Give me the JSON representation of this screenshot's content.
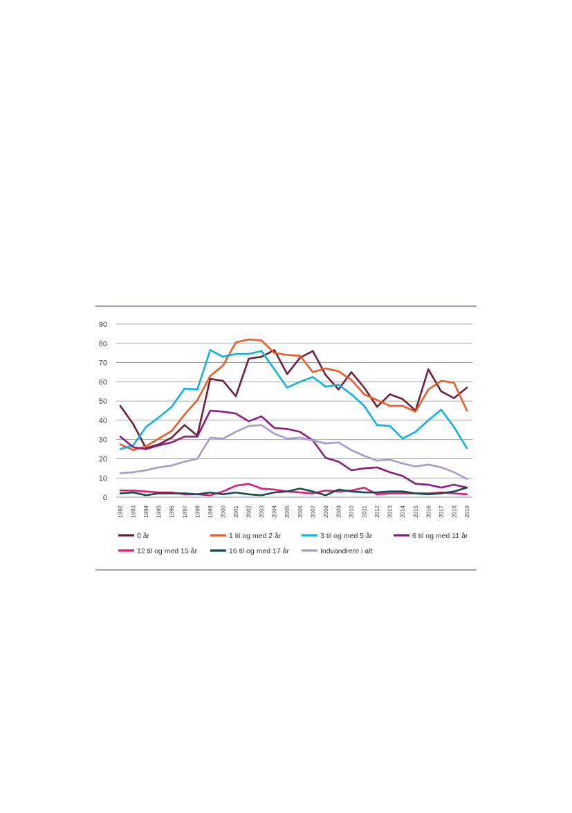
{
  "chart_data": {
    "type": "line",
    "title": "",
    "xlabel": "",
    "ylabel": "",
    "ylim": [
      0,
      90
    ],
    "yticks": [
      0,
      10,
      20,
      30,
      40,
      50,
      60,
      70,
      80,
      90
    ],
    "grid": true,
    "legend_position": "bottom",
    "categories": [
      "1992",
      "1993",
      "1994",
      "1995",
      "1996",
      "1997",
      "1998",
      "1999",
      "2000",
      "2001",
      "2002",
      "2003",
      "2004",
      "2005",
      "2006",
      "2007",
      "2008",
      "2009",
      "2010",
      "2011",
      "2012",
      "2013",
      "2014",
      "2015",
      "2016",
      "2017",
      "2018",
      "2019"
    ],
    "series": [
      {
        "name": "0 år",
        "color": "#6e1f35",
        "values": [
          47.5,
          38,
          25.5,
          27.5,
          31,
          37.5,
          32,
          61.5,
          60.5,
          52.5,
          72,
          73,
          76.5,
          64,
          72.5,
          76,
          63.5,
          56,
          65,
          57,
          47,
          53.5,
          51,
          45,
          66.5,
          55,
          51.5,
          57
        ]
      },
      {
        "name": "1 til og med 2 år",
        "color": "#f05a22",
        "values": [
          27.5,
          24.5,
          26.5,
          30.5,
          34.5,
          43,
          50.5,
          63,
          68.5,
          80.5,
          82,
          81.5,
          75,
          74,
          73.5,
          65,
          67,
          65.5,
          61,
          53.5,
          50.5,
          47.5,
          47.5,
          44.5,
          56,
          60.5,
          59.5,
          45
        ]
      },
      {
        "name": "3 til og med 5 år",
        "color": "#0ab2e8",
        "values": [
          25,
          27,
          36.5,
          41.5,
          47,
          56.5,
          56,
          76.5,
          73,
          74.5,
          74.5,
          76,
          66.5,
          57,
          60,
          62.5,
          57.5,
          58.5,
          53.5,
          47.5,
          37.5,
          37,
          30.5,
          34,
          40,
          45.5,
          36.5,
          25.5
        ]
      },
      {
        "name": "6 til og med 11 år",
        "color": "#8a1a84",
        "values": [
          31.5,
          26,
          25,
          27,
          28.5,
          31.5,
          31.5,
          45,
          44.5,
          43.5,
          39.5,
          42,
          36,
          35.5,
          34,
          29.5,
          20.5,
          18.5,
          14,
          15,
          15.5,
          13,
          11,
          7,
          6.5,
          5,
          6.5,
          5
        ]
      },
      {
        "name": "12 til og med 15 år",
        "color": "#e5197a",
        "values": [
          3.5,
          3.5,
          3,
          2.5,
          2.5,
          1.5,
          1.5,
          1,
          3,
          6,
          7,
          4.5,
          4,
          3,
          2.5,
          2,
          3.5,
          3,
          3.5,
          5,
          1.5,
          2,
          2,
          2,
          2,
          2.5,
          2,
          1.5
        ]
      },
      {
        "name": "16 til og med 17 år",
        "color": "#164a4e",
        "values": [
          2,
          2.5,
          1,
          2,
          2,
          2,
          1.5,
          2.5,
          1.5,
          2.5,
          1.5,
          1,
          2.5,
          3,
          4.5,
          3,
          1,
          4,
          3,
          2.5,
          2.5,
          3,
          3,
          2,
          1.5,
          2,
          3,
          5
        ]
      },
      {
        "name": "Indvandrere i alt",
        "color": "#a49ad0",
        "values": [
          12.5,
          13,
          14,
          15.5,
          16.5,
          18.5,
          20,
          31,
          30.5,
          34,
          37,
          37.5,
          33,
          30.5,
          31,
          29.5,
          28,
          28.5,
          24.5,
          21.5,
          19,
          19.5,
          17.5,
          16,
          17,
          15.5,
          13,
          9.5
        ]
      }
    ]
  }
}
